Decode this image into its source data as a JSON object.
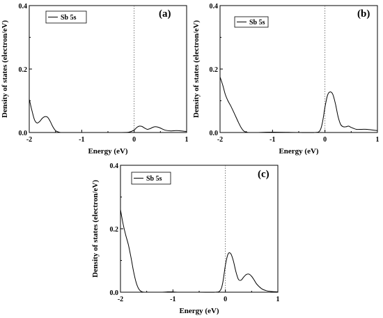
{
  "chart_data": [
    {
      "type": "line",
      "panel_label": "(a)",
      "xlabel": "Energy (eV)",
      "ylabel": "Density of states (electron/eV)",
      "xlim": [
        -2,
        1
      ],
      "ylim": [
        0,
        0.4
      ],
      "xticks": [
        "-2",
        "-1",
        "0",
        "1"
      ],
      "yticks": [
        "0.0",
        "0.2",
        "0.4"
      ],
      "fermi_level": 0,
      "grid": false,
      "legend_position": "top-left",
      "series": [
        {
          "name": "Sb 5s",
          "x": [
            -2.0,
            -1.95,
            -1.9,
            -1.85,
            -1.8,
            -1.75,
            -1.7,
            -1.65,
            -1.6,
            -1.55,
            -1.5,
            -1.45,
            -1.4,
            -1.3,
            -1.2,
            -1.0,
            -0.8,
            -0.5,
            -0.3,
            -0.1,
            0.0,
            0.05,
            0.1,
            0.15,
            0.2,
            0.25,
            0.3,
            0.35,
            0.4,
            0.45,
            0.5,
            0.55,
            0.6,
            0.7,
            0.8,
            0.9,
            1.0
          ],
          "y": [
            0.105,
            0.07,
            0.04,
            0.03,
            0.035,
            0.045,
            0.05,
            0.048,
            0.035,
            0.018,
            0.006,
            0.002,
            0.0,
            0.0,
            0.0,
            0.0,
            0.0,
            0.0,
            0.0,
            0.001,
            0.008,
            0.016,
            0.02,
            0.019,
            0.014,
            0.01,
            0.012,
            0.016,
            0.018,
            0.017,
            0.014,
            0.01,
            0.007,
            0.005,
            0.006,
            0.005,
            0.003
          ]
        }
      ]
    },
    {
      "type": "line",
      "panel_label": "(b)",
      "xlabel": "Energy (eV)",
      "ylabel": "Density of states (electron/eV)",
      "xlim": [
        -2,
        1
      ],
      "ylim": [
        0,
        0.4
      ],
      "xticks": [
        "-2",
        "-1",
        "0",
        "1"
      ],
      "yticks": [
        "0.0",
        "0.2",
        "0.4"
      ],
      "fermi_level": 0,
      "grid": false,
      "legend_position": "top-left",
      "series": [
        {
          "name": "Sb 5s",
          "x": [
            -2.0,
            -1.95,
            -1.9,
            -1.85,
            -1.8,
            -1.75,
            -1.7,
            -1.65,
            -1.6,
            -1.55,
            -1.5,
            -1.45,
            -1.4,
            -1.3,
            -1.0,
            -0.5,
            -0.2,
            -0.1,
            -0.05,
            0.0,
            0.05,
            0.1,
            0.15,
            0.2,
            0.25,
            0.3,
            0.35,
            0.4,
            0.45,
            0.5,
            0.6,
            0.7,
            0.8,
            0.9,
            1.0
          ],
          "y": [
            0.175,
            0.15,
            0.12,
            0.1,
            0.085,
            0.068,
            0.05,
            0.032,
            0.016,
            0.005,
            0.001,
            0.0,
            0.0,
            0.0,
            0.001,
            0.0,
            0.0,
            0.005,
            0.03,
            0.08,
            0.118,
            0.128,
            0.12,
            0.09,
            0.05,
            0.025,
            0.018,
            0.018,
            0.02,
            0.016,
            0.01,
            0.01,
            0.01,
            0.008,
            0.006
          ]
        }
      ]
    },
    {
      "type": "line",
      "panel_label": "(c)",
      "xlabel": "Energy (eV)",
      "ylabel": "Density of states (electron/eV)",
      "xlim": [
        -2,
        1
      ],
      "ylim": [
        0,
        0.4
      ],
      "xticks": [
        "-2",
        "-1",
        "0",
        "1"
      ],
      "yticks": [
        "0.0",
        "0.2",
        "0.4"
      ],
      "fermi_level": 0,
      "grid": false,
      "legend_position": "top-left",
      "series": [
        {
          "name": "Sb 5s",
          "x": [
            -2.0,
            -1.95,
            -1.9,
            -1.85,
            -1.8,
            -1.75,
            -1.7,
            -1.65,
            -1.6,
            -1.55,
            -1.5,
            -1.4,
            -1.2,
            -1.1,
            -1.0,
            -0.9,
            -0.5,
            -0.2,
            -0.1,
            -0.05,
            0.0,
            0.05,
            0.1,
            0.15,
            0.2,
            0.25,
            0.3,
            0.35,
            0.4,
            0.45,
            0.5,
            0.55,
            0.6,
            0.7,
            0.8,
            0.9,
            1.0
          ],
          "y": [
            0.26,
            0.215,
            0.18,
            0.15,
            0.11,
            0.065,
            0.03,
            0.01,
            0.002,
            0.0,
            0.0,
            0.0,
            0.0,
            0.001,
            0.001,
            0.0,
            0.0,
            0.0,
            0.005,
            0.03,
            0.085,
            0.12,
            0.122,
            0.1,
            0.065,
            0.04,
            0.038,
            0.048,
            0.056,
            0.057,
            0.05,
            0.038,
            0.025,
            0.01,
            0.004,
            0.002,
            0.001
          ]
        }
      ]
    }
  ]
}
